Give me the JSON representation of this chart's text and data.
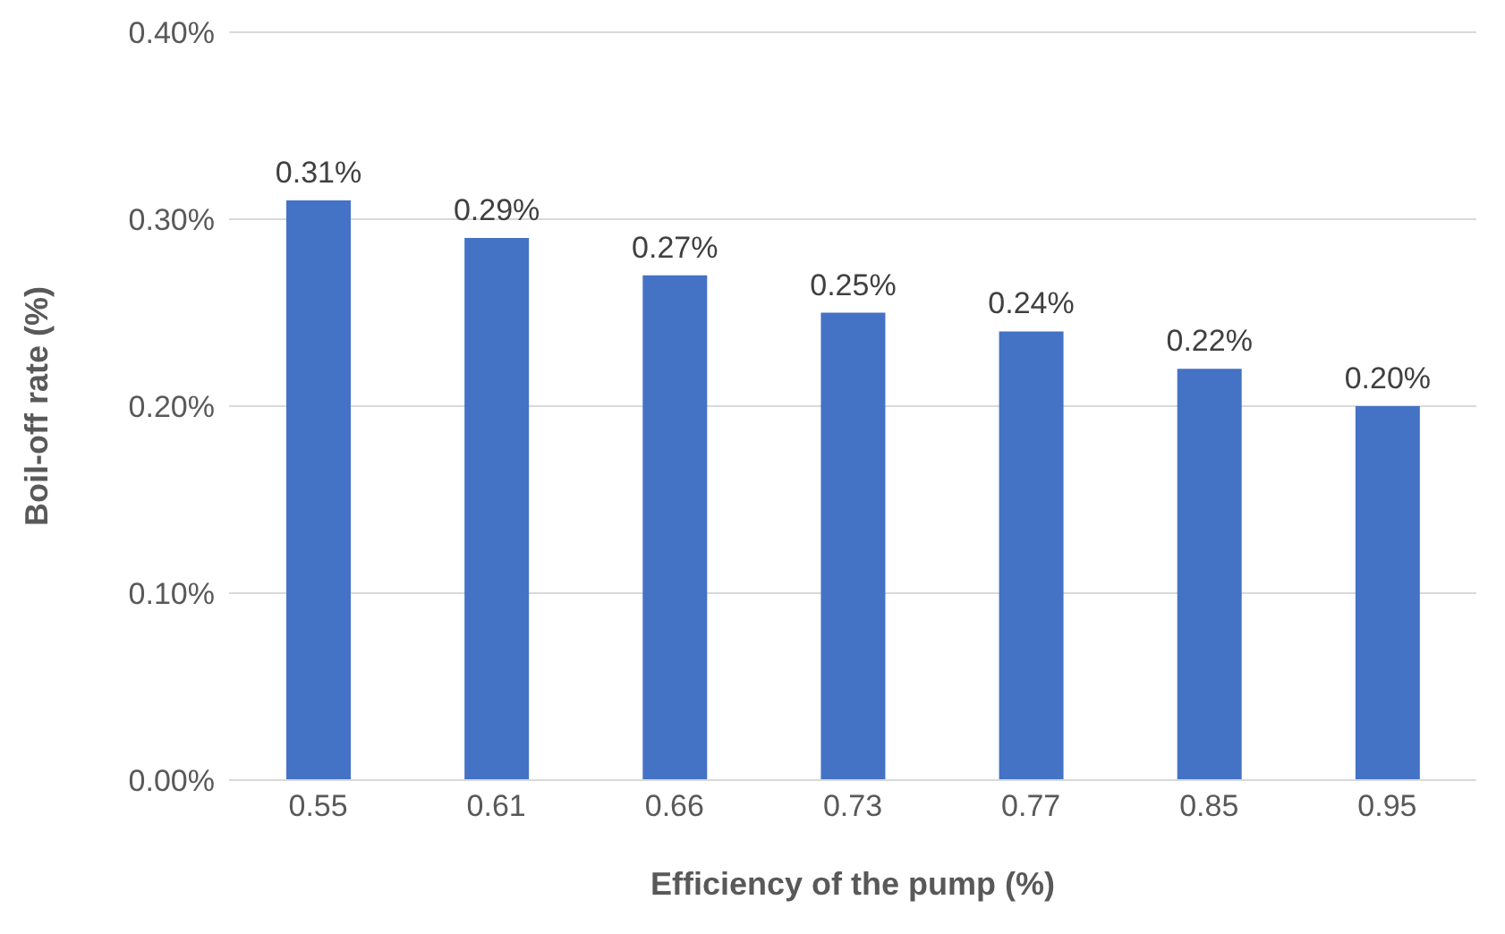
{
  "chart_data": {
    "type": "bar",
    "xlabel": "Efficiency of the pump (%)",
    "ylabel": "Boil-off rate (%)",
    "categories": [
      "0.55",
      "0.61",
      "0.66",
      "0.73",
      "0.77",
      "0.85",
      "0.95"
    ],
    "values": [
      0.31,
      0.29,
      0.27,
      0.25,
      0.24,
      0.22,
      0.2
    ],
    "value_labels": [
      "0.31%",
      "0.29%",
      "0.27%",
      "0.25%",
      "0.24%",
      "0.22%",
      "0.20%"
    ],
    "color": "#4472c4",
    "ylim": [
      0,
      0.4
    ],
    "yticks": [
      {
        "value": 0,
        "label": "0.00%"
      },
      {
        "value": 0.1,
        "label": "0.10%"
      },
      {
        "value": 0.2,
        "label": "0.20%"
      },
      {
        "value": 0.3,
        "label": "0.30%"
      },
      {
        "value": 0.4,
        "label": "0.40%"
      }
    ],
    "grid": "y"
  }
}
